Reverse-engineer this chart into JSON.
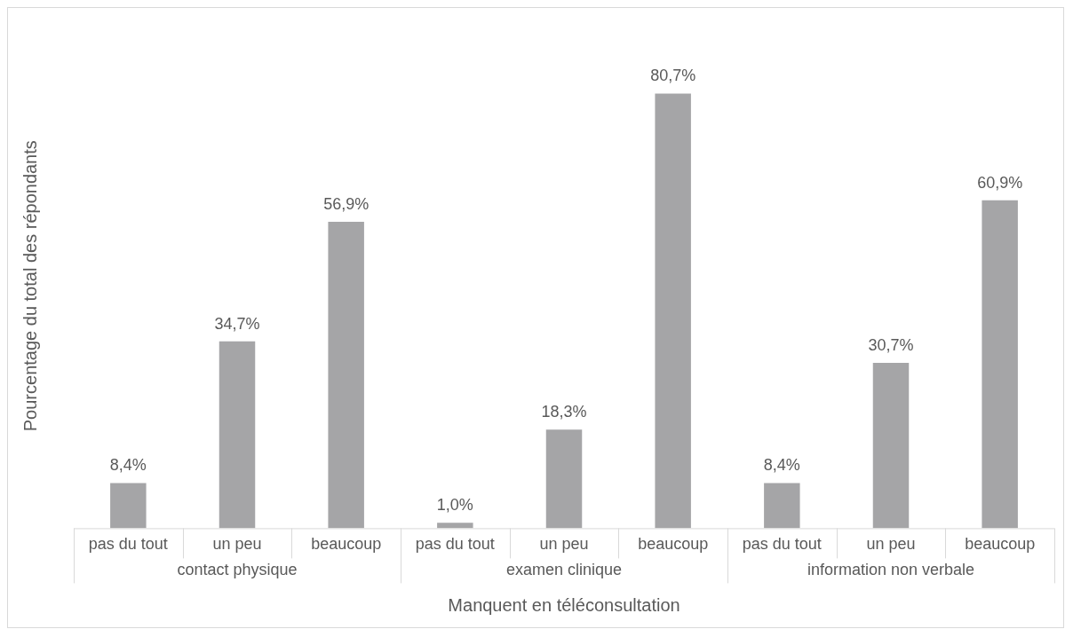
{
  "chart_data": {
    "type": "bar",
    "ylabel": "Pourcentage du total des répondants",
    "xlabel": "Manquent en téléconsultation",
    "categories": [
      "pas du tout",
      "un peu",
      "beaucoup",
      "pas du tout",
      "un peu",
      "beaucoup",
      "pas du tout",
      "un peu",
      "beaucoup"
    ],
    "values": [
      8.4,
      34.7,
      56.9,
      1.0,
      18.3,
      80.7,
      8.4,
      30.7,
      60.9
    ],
    "value_labels": [
      "8,4%",
      "34,7%",
      "56,9%",
      "1,0%",
      "18,3%",
      "80,7%",
      "8,4%",
      "30,7%",
      "60,9%"
    ],
    "color": "#a5a5a7",
    "annotations": [
      "contact physique",
      "examen clinique",
      "information non verbale"
    ],
    "grid": false,
    "legend": false
  }
}
